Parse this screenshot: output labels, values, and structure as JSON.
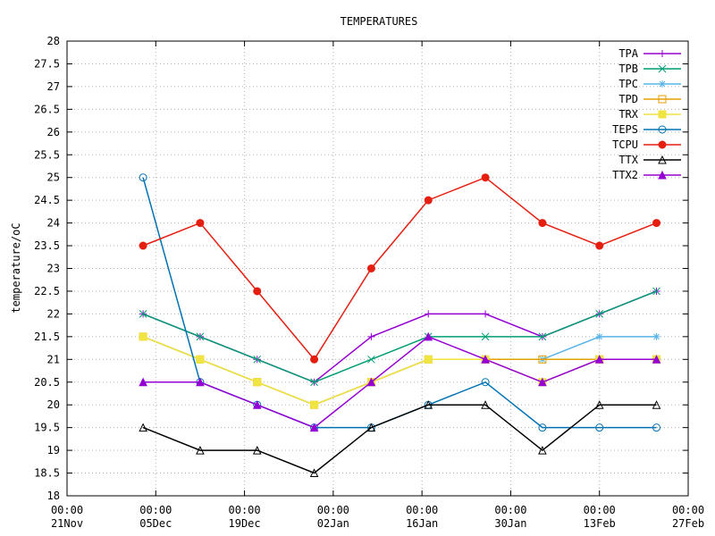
{
  "chart_data": {
    "type": "line",
    "title": "TEMPERATURES",
    "ylabel": "temperature/oC",
    "xlabel": "",
    "ylim": [
      18,
      28
    ],
    "yticks": [
      "18",
      "18.5",
      "19",
      "19.5",
      "20",
      "20.5",
      "21",
      "21.5",
      "22",
      "22.5",
      "23",
      "23.5",
      "24",
      "24.5",
      "25",
      "25.5",
      "26",
      "26.5",
      "27",
      "27.5",
      "28"
    ],
    "xlim": [
      "2012-11-21",
      "2013-02-27"
    ],
    "xticks": [
      {
        "time": "00:00",
        "date": "21Nov"
      },
      {
        "time": "00:00",
        "date": "05Dec"
      },
      {
        "time": "00:00",
        "date": "19Dec"
      },
      {
        "time": "00:00",
        "date": "02Jan"
      },
      {
        "time": "00:00",
        "date": "16Jan"
      },
      {
        "time": "00:00",
        "date": "30Jan"
      },
      {
        "time": "00:00",
        "date": "13Feb"
      },
      {
        "time": "00:00",
        "date": "27Feb"
      }
    ],
    "grid": true,
    "legend_position": "top-right",
    "series": [
      {
        "name": "TPA",
        "color": "#9400d3",
        "marker": "plus",
        "x": [
          "2012-12-03",
          "2012-12-12",
          "2012-12-21",
          "2012-12-30",
          "2013-01-08",
          "2013-01-17",
          "2013-01-26",
          "2013-02-04",
          "2013-02-13",
          "2013-02-22"
        ],
        "y": [
          22.0,
          21.5,
          21.0,
          20.5,
          21.5,
          22.0,
          22.0,
          21.5,
          22.0,
          22.5
        ]
      },
      {
        "name": "TPB",
        "color": "#009e73",
        "marker": "x",
        "x": [
          "2012-12-03",
          "2012-12-12",
          "2012-12-21",
          "2012-12-30",
          "2013-01-08",
          "2013-01-17",
          "2013-01-26",
          "2013-02-04",
          "2013-02-13",
          "2013-02-22"
        ],
        "y": [
          22.0,
          21.5,
          21.0,
          20.5,
          21.0,
          21.5,
          21.5,
          21.5,
          22.0,
          22.5
        ]
      },
      {
        "name": "TPC",
        "color": "#56b4e9",
        "marker": "star",
        "x": [
          "2012-12-03",
          "2012-12-12",
          "2012-12-21",
          "2012-12-30",
          "2013-01-08",
          "2013-01-17",
          "2013-01-26",
          "2013-02-04",
          "2013-02-13",
          "2013-02-22"
        ],
        "y": [
          21.5,
          21.0,
          20.5,
          20.0,
          20.5,
          21.0,
          21.0,
          21.0,
          21.5,
          21.5
        ]
      },
      {
        "name": "TPD",
        "color": "#e69f00",
        "marker": "square-open",
        "x": [
          "2012-12-03",
          "2012-12-12",
          "2012-12-21",
          "2012-12-30",
          "2013-01-08",
          "2013-01-17",
          "2013-01-26",
          "2013-02-04",
          "2013-02-13",
          "2013-02-22"
        ],
        "y": [
          21.5,
          21.0,
          20.5,
          20.0,
          20.5,
          21.0,
          21.0,
          21.0,
          21.0,
          21.0
        ]
      },
      {
        "name": "TRX",
        "color": "#f0e442",
        "marker": "square",
        "x": [
          "2012-12-03",
          "2012-12-12",
          "2012-12-21",
          "2012-12-30",
          "2013-01-08",
          "2013-01-17",
          "2013-01-26",
          "2013-02-04",
          "2013-02-13",
          "2013-02-22"
        ],
        "y": [
          21.5,
          21.0,
          20.5,
          20.0,
          20.5,
          21.0,
          21.0,
          20.5,
          21.0,
          21.0
        ]
      },
      {
        "name": "TEPS",
        "color": "#0072b2",
        "marker": "circle-open",
        "x": [
          "2012-12-03",
          "2012-12-12",
          "2012-12-21",
          "2012-12-30",
          "2013-01-08",
          "2013-01-17",
          "2013-01-26",
          "2013-02-04",
          "2013-02-13",
          "2013-02-22"
        ],
        "y": [
          25.0,
          20.5,
          20.0,
          19.5,
          19.5,
          20.0,
          20.5,
          19.5,
          19.5,
          19.5
        ]
      },
      {
        "name": "TCPU",
        "color": "#e51e10",
        "marker": "circle",
        "x": [
          "2012-12-03",
          "2012-12-12",
          "2012-12-21",
          "2012-12-30",
          "2013-01-08",
          "2013-01-17",
          "2013-01-26",
          "2013-02-04",
          "2013-02-13",
          "2013-02-22"
        ],
        "y": [
          23.5,
          24.0,
          22.5,
          21.0,
          23.0,
          24.5,
          25.0,
          24.0,
          23.5,
          24.0
        ]
      },
      {
        "name": "TTX",
        "color": "#000000",
        "marker": "triangle-open",
        "x": [
          "2012-12-03",
          "2012-12-12",
          "2012-12-21",
          "2012-12-30",
          "2013-01-08",
          "2013-01-17",
          "2013-01-26",
          "2013-02-04",
          "2013-02-13",
          "2013-02-22"
        ],
        "y": [
          19.5,
          19.0,
          19.0,
          18.5,
          19.5,
          20.0,
          20.0,
          19.0,
          20.0,
          20.0
        ]
      },
      {
        "name": "TTX2",
        "color": "#9400d3",
        "marker": "triangle",
        "x": [
          "2012-12-03",
          "2012-12-12",
          "2012-12-21",
          "2012-12-30",
          "2013-01-08",
          "2013-01-17",
          "2013-01-26",
          "2013-02-04",
          "2013-02-13",
          "2013-02-22"
        ],
        "y": [
          20.5,
          20.5,
          20.0,
          19.5,
          20.5,
          21.5,
          21.0,
          20.5,
          21.0,
          21.0
        ]
      }
    ]
  }
}
